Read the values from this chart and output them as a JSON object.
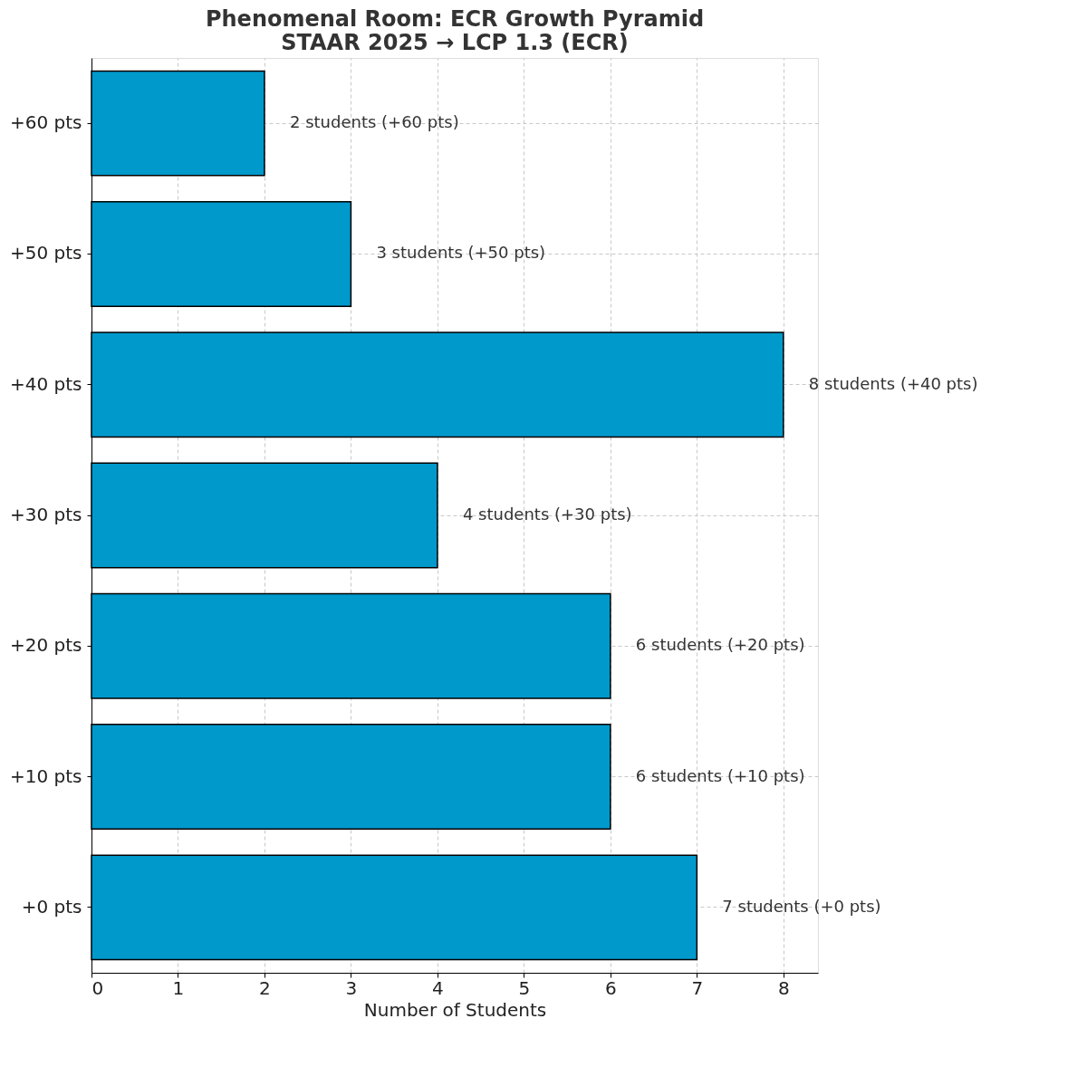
{
  "chart_data": {
    "type": "bar",
    "orientation": "horizontal",
    "title": [
      "Phenomenal Room: ECR Growth Pyramid",
      "STAAR 2025 → LCP 1.3 (ECR)"
    ],
    "xlabel": "Number of Students",
    "categories": [
      "+60 pts",
      "+50 pts",
      "+40 pts",
      "+30 pts",
      "+20 pts",
      "+10 pts",
      "+0 pts"
    ],
    "values": [
      2,
      3,
      8,
      4,
      6,
      6,
      7
    ],
    "value_labels": [
      "2 students (+60 pts)",
      "3 students (+50 pts)",
      "8 students (+40 pts)",
      "4 students (+30 pts)",
      "6 students (+20 pts)",
      "6 students (+10 pts)",
      "7 students (+0 pts)"
    ],
    "color": "#0099cc",
    "xlim": [
      0,
      8.4
    ],
    "xticks": [
      0,
      1,
      2,
      3,
      4,
      5,
      6,
      7,
      8
    ],
    "grid": true
  }
}
